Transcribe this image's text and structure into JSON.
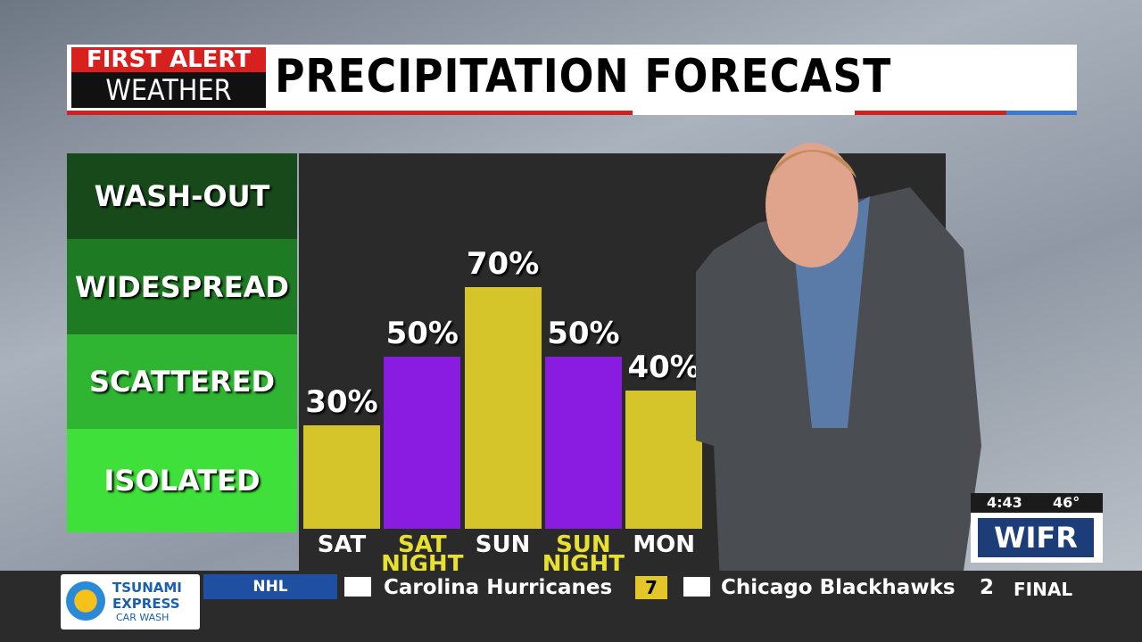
{
  "header": {
    "brand_top": "FIRST ALERT",
    "brand_bottom": "WEATHER",
    "title": "PRECIPITATION FORECAST"
  },
  "chart_data": {
    "type": "bar",
    "categories": [
      "SAT",
      "SAT NIGHT",
      "SUN",
      "SUN NIGHT",
      "MON"
    ],
    "values": [
      30,
      50,
      70,
      50,
      40
    ],
    "value_labels": [
      "30%",
      "50%",
      "70%",
      "50%",
      "40%"
    ],
    "colors": [
      "#d6c42b",
      "#8a1be0",
      "#d6c42b",
      "#8a1be0",
      "#d6c42b"
    ],
    "category_label_colors": [
      "#ffffff",
      "#e8e030",
      "#ffffff",
      "#e8e030",
      "#ffffff"
    ],
    "ylim": [
      0,
      100
    ],
    "intensity_levels": [
      "WASH-OUT",
      "WIDESPREAD",
      "SCATTERED",
      "ISOLATED"
    ]
  },
  "station": {
    "time": "4:43",
    "temperature": "46°",
    "call_sign": "WIFR"
  },
  "ticker": {
    "sponsor_line1": "TSUNAMI",
    "sponsor_line2": "EXPRESS",
    "sponsor_line3": "CAR WASH",
    "league": "NHL",
    "team1": "Carolina Hurricanes",
    "score1": "7",
    "team2": "Chicago Blackhawks",
    "score2": "2",
    "status": "FINAL"
  }
}
